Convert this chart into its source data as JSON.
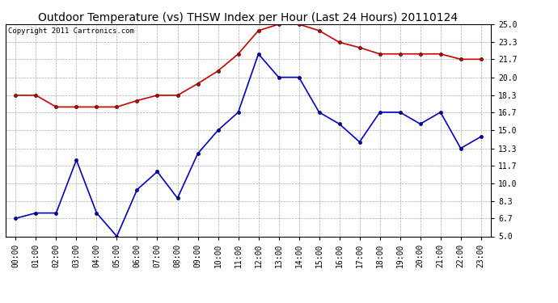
{
  "title": "Outdoor Temperature (vs) THSW Index per Hour (Last 24 Hours) 20110124",
  "copyright": "Copyright 2011 Cartronics.com",
  "hours": [
    "00:00",
    "01:00",
    "02:00",
    "03:00",
    "04:00",
    "05:00",
    "06:00",
    "07:00",
    "08:00",
    "09:00",
    "10:00",
    "11:00",
    "12:00",
    "13:00",
    "14:00",
    "15:00",
    "16:00",
    "17:00",
    "18:00",
    "19:00",
    "20:00",
    "21:00",
    "22:00",
    "23:00"
  ],
  "temp_red": [
    18.3,
    18.3,
    17.2,
    17.2,
    17.2,
    17.2,
    17.8,
    18.3,
    18.3,
    19.4,
    20.6,
    22.2,
    24.4,
    25.0,
    25.0,
    24.4,
    23.3,
    22.8,
    22.2,
    22.2,
    22.2,
    22.2,
    21.7,
    21.7
  ],
  "thsw_blue": [
    6.7,
    7.2,
    7.2,
    12.2,
    7.2,
    5.0,
    9.4,
    11.1,
    8.6,
    12.8,
    15.0,
    16.7,
    22.2,
    20.0,
    20.0,
    16.7,
    15.6,
    13.9,
    16.7,
    16.7,
    15.6,
    16.7,
    13.3,
    14.4
  ],
  "ylim": [
    5.0,
    25.0
  ],
  "yticks": [
    5.0,
    6.7,
    8.3,
    10.0,
    11.7,
    13.3,
    15.0,
    16.7,
    18.3,
    20.0,
    21.7,
    23.3,
    25.0
  ],
  "red_color": "#cc0000",
  "blue_color": "#0000cc",
  "bg_color": "#ffffff",
  "grid_color": "#aaaaaa",
  "title_fontsize": 10,
  "copyright_fontsize": 6.5,
  "tick_fontsize": 7,
  "marker_size": 3
}
